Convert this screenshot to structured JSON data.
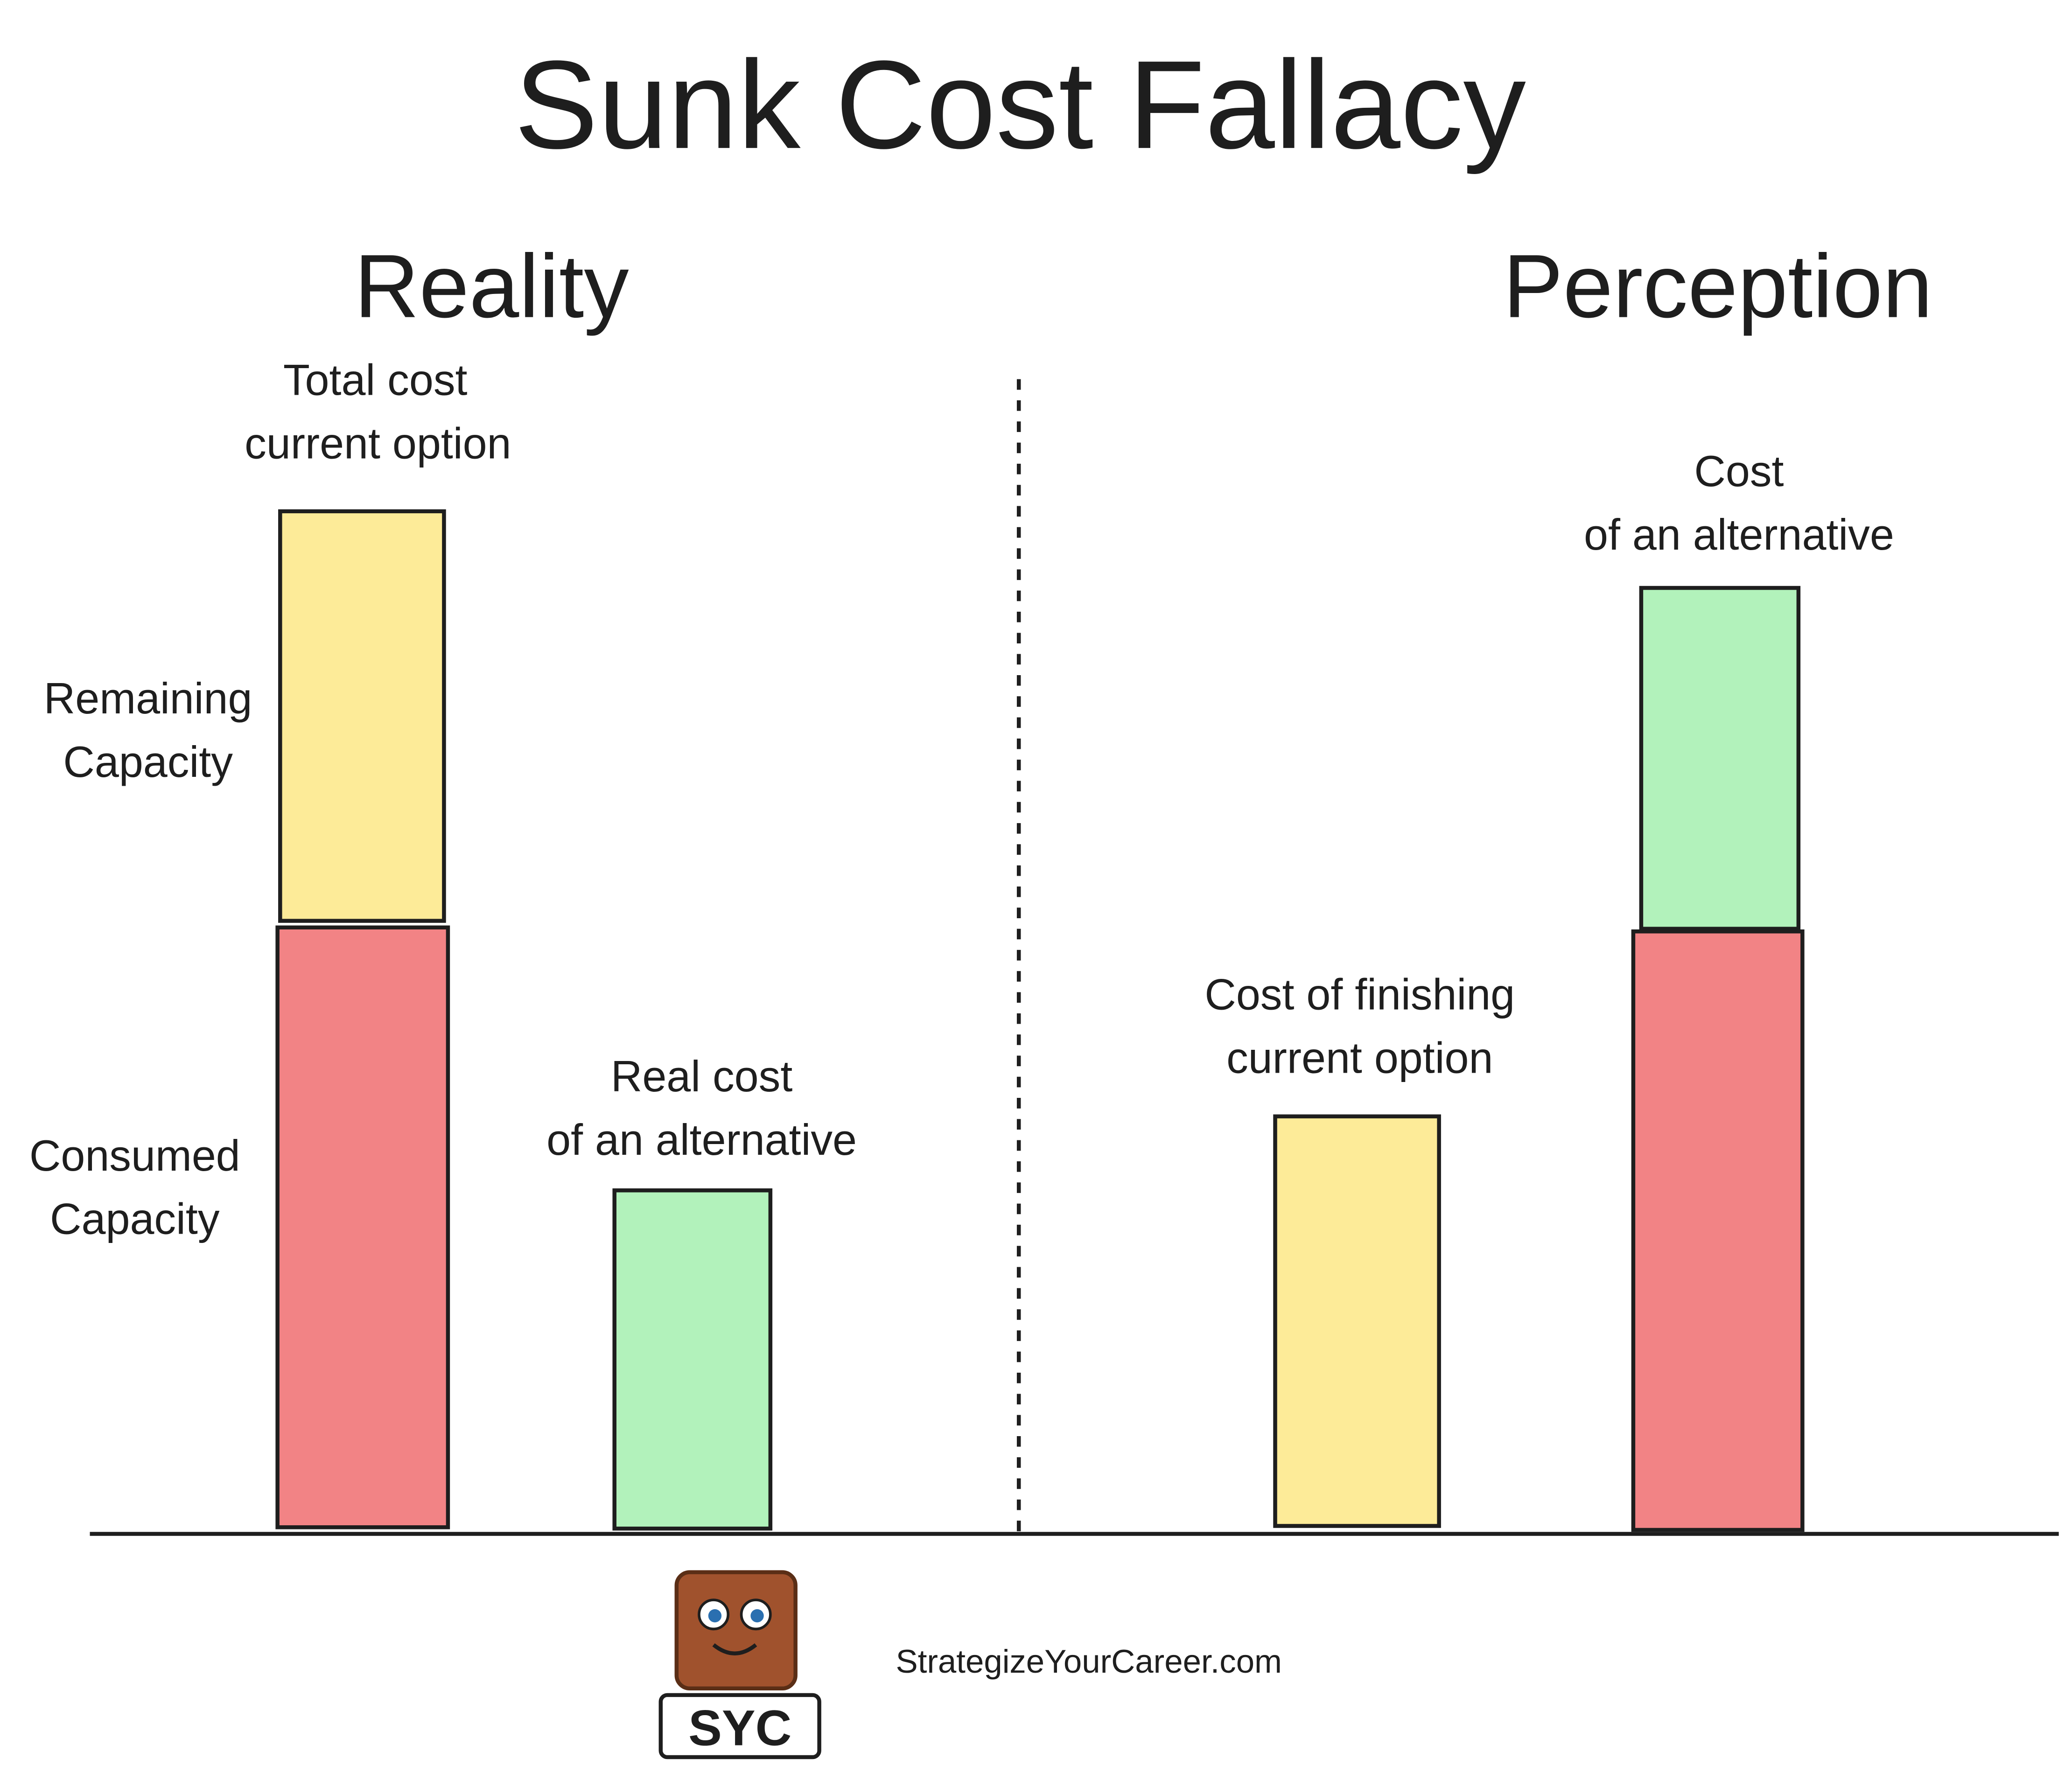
{
  "title": "Sunk Cost Fallacy",
  "reality": {
    "heading": "Reality",
    "total_cost": [
      "Total cost",
      "current option"
    ],
    "remaining": [
      "Remaining",
      "Capacity"
    ],
    "consumed": [
      "Consumed",
      "Capacity"
    ],
    "alternative": [
      "Real cost",
      "of an alternative"
    ]
  },
  "perception": {
    "heading": "Perception",
    "finishing": [
      "Cost of finishing",
      "current option"
    ],
    "alternative": [
      "Cost",
      "of an alternative"
    ]
  },
  "footer": {
    "logo": "SYC",
    "website": "StrategizeYourCareer.com"
  }
}
